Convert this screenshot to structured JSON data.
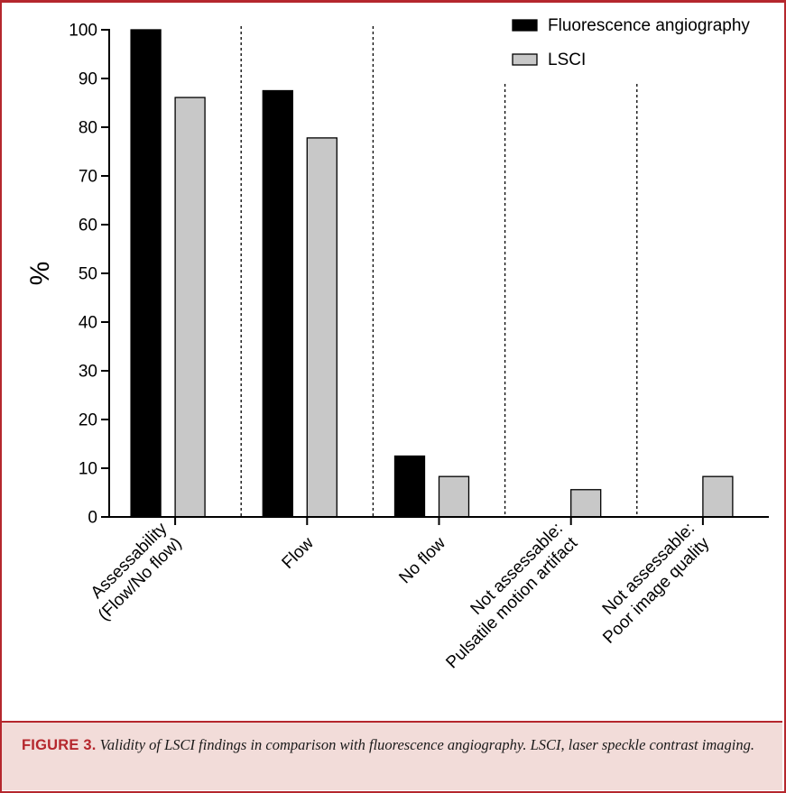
{
  "chart_data": {
    "type": "bar",
    "ylabel": "%",
    "xlabel": "",
    "ylim": [
      0,
      100
    ],
    "yticks": [
      0,
      10,
      20,
      30,
      40,
      50,
      60,
      70,
      80,
      90,
      100
    ],
    "categories": [
      [
        "Assessability",
        "(Flow/No flow)"
      ],
      [
        "Flow"
      ],
      [
        "No flow"
      ],
      [
        "Not assessable:",
        "Pulsatile motion artifact"
      ],
      [
        "Not assessable:",
        "Poor image quality"
      ]
    ],
    "series": [
      {
        "name": "Fluorescence angiography",
        "color": "#000000",
        "values": [
          100,
          87.5,
          12.5,
          0,
          0
        ]
      },
      {
        "name": "LSCI",
        "color": "#c8c8c8",
        "values": [
          86.1,
          77.8,
          8.3,
          5.6,
          8.3
        ]
      }
    ],
    "legend_position": "top-right",
    "category_separators": "dashed"
  },
  "caption": {
    "label": "FIGURE 3.",
    "text": "Validity of LSCI findings in comparison with fluorescence angiography. LSCI, laser speckle contrast imaging."
  },
  "colors": {
    "accent": "#b5272d",
    "caption_bg": "#f2dcd9"
  }
}
